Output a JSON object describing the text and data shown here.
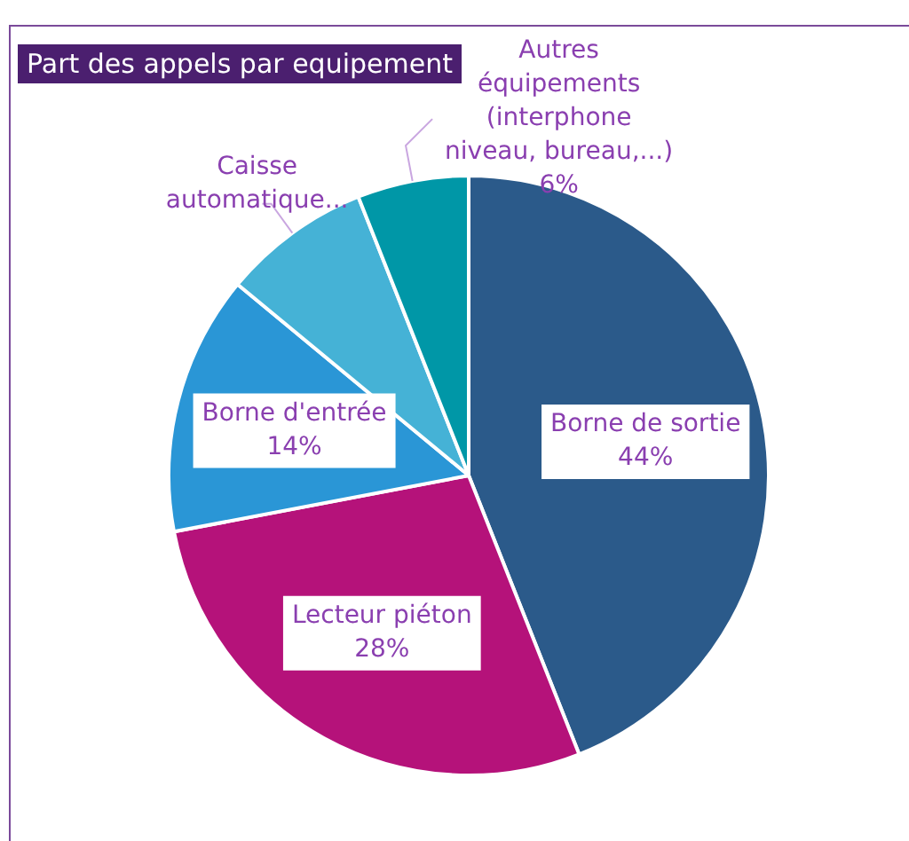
{
  "chart_data": {
    "type": "pie",
    "title": "Part des appels par equipement",
    "categories": [
      "Borne de sortie",
      "Lecteur piéton",
      "Borne d'entrée",
      "Caisse automatique...",
      "Autres équipements (interphone niveau, bureau,...)"
    ],
    "values": [
      44,
      28,
      14,
      8,
      6
    ],
    "colors": [
      "#2b5a8a",
      "#b5127a",
      "#2a96d6",
      "#45b2d6",
      "#0097a7"
    ],
    "value_labels": [
      "44%",
      "28%",
      "14%",
      null,
      "6%"
    ],
    "legend": false
  }
}
